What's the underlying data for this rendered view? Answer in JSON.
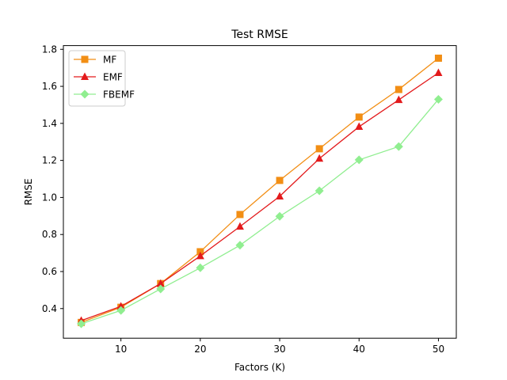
{
  "chart_data": {
    "type": "line",
    "title": "Test RMSE",
    "xlabel": "Factors (K)",
    "ylabel": "RMSE",
    "x": [
      5,
      10,
      15,
      20,
      25,
      30,
      35,
      40,
      45,
      50
    ],
    "xlim": [
      2.75,
      52.25
    ],
    "ylim": [
      0.24,
      1.82
    ],
    "xticks": [
      10,
      20,
      30,
      40,
      50
    ],
    "yticks": [
      0.4,
      0.6,
      0.8,
      1.0,
      1.2,
      1.4,
      1.6,
      1.8
    ],
    "ytick_labels": [
      "0.4",
      "0.6",
      "0.8",
      "1.0",
      "1.2",
      "1.4",
      "1.6",
      "1.8"
    ],
    "grid": false,
    "legend_position": "top-left",
    "series": [
      {
        "name": "MF",
        "color": "#f28e14",
        "marker": "square",
        "values": [
          0.325,
          0.407,
          0.535,
          0.707,
          0.908,
          1.092,
          1.263,
          1.434,
          1.583,
          1.752
        ]
      },
      {
        "name": "EMF",
        "color": "#e31a1c",
        "marker": "triangle",
        "values": [
          0.335,
          0.412,
          0.535,
          0.684,
          0.843,
          1.006,
          1.21,
          1.382,
          1.527,
          1.673
        ]
      },
      {
        "name": "FBEMF",
        "color": "#90ee90",
        "marker": "diamond",
        "values": [
          0.318,
          0.39,
          0.506,
          0.62,
          0.742,
          0.898,
          1.036,
          1.203,
          1.275,
          1.53
        ]
      }
    ]
  }
}
